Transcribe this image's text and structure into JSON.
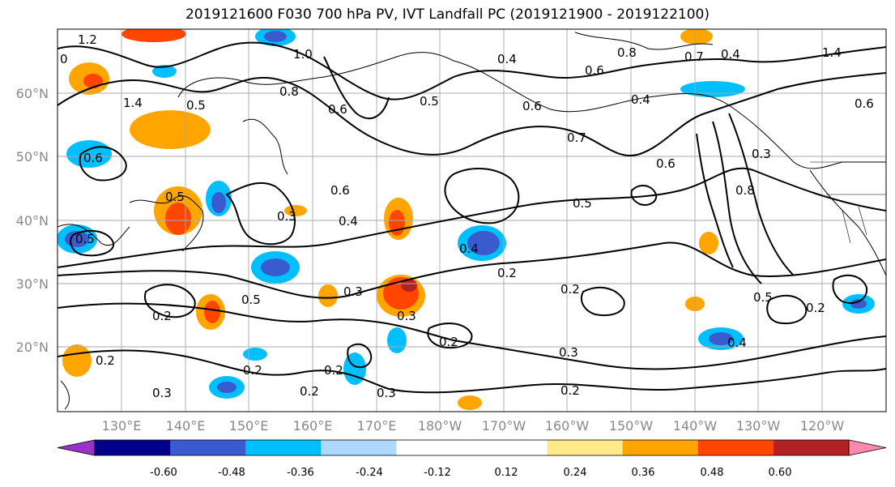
{
  "title": "2019121600 F030 700 hPa PV, IVT Landfall PC (2019121900 - 2019122100)",
  "lat_ticks": [
    "60°N",
    "50°N",
    "40°N",
    "30°N",
    "20°N"
  ],
  "lon_ticks": [
    "130°E",
    "140°E",
    "150°E",
    "160°E",
    "170°E",
    "180°W",
    "170°W",
    "160°W",
    "150°W",
    "140°W",
    "130°W",
    "120°W"
  ],
  "colorbar": {
    "colors": [
      "#9932cc",
      "#00008b",
      "#3a5bd0",
      "#00bfff",
      "#add8ff",
      "#ffffff",
      "#ffffff",
      "#ffe98a",
      "#ffa500",
      "#ff4500",
      "#b22222",
      "#ff88b0"
    ],
    "tick_labels": [
      "-0.60",
      "-0.48",
      "-0.36",
      "-0.24",
      "-0.12",
      "0.12",
      "0.24",
      "0.36",
      "0.48",
      "0.60"
    ]
  },
  "contour_labels": [
    "1.2",
    "0",
    "1.0",
    "0.4",
    "0.8",
    "0.7",
    "0.4",
    "1.4",
    "0.6",
    "1.4",
    "0.5",
    "0.8",
    "0.6",
    "0.6",
    "0.4",
    "0.6",
    "0.5",
    "0.8",
    "0.7",
    "0.6",
    "0.6",
    "0.5",
    "0.5",
    "0.6",
    "0.3",
    "0.4",
    "0.5",
    "0.3",
    "0.4",
    "0.2",
    "0.2",
    "0.3",
    "0.5",
    "0.2",
    "0.2",
    "0.3",
    "0.2",
    "0.3",
    "0.2",
    "0.3",
    "0.2",
    "0.2",
    "0.4",
    "0.5",
    "0.2",
    "0.3",
    "0.2"
  ]
}
